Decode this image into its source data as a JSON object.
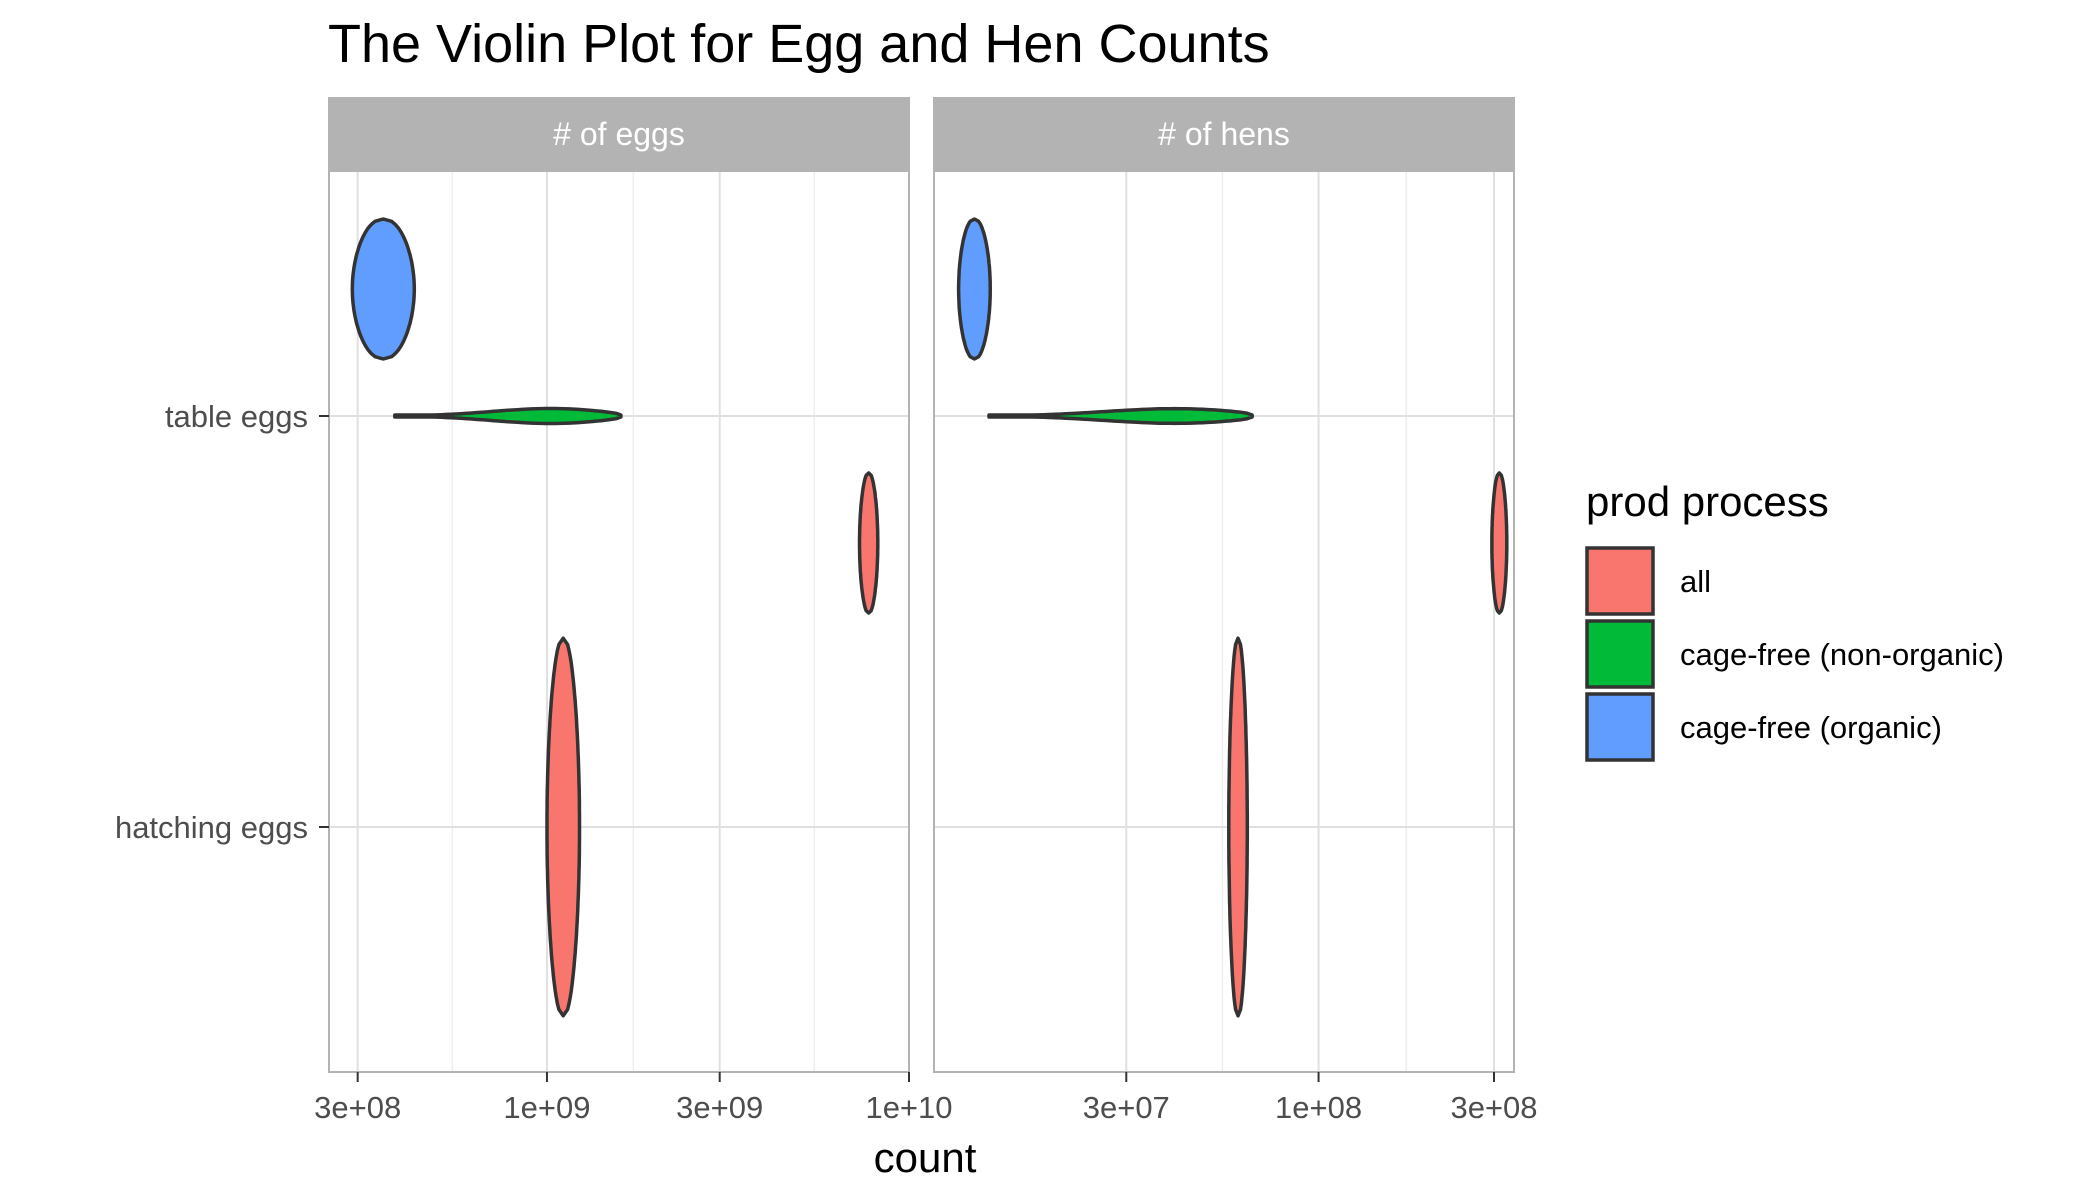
{
  "chart_data": {
    "type": "violin",
    "title": "The Violin Plot for Egg and Hen Counts",
    "xlabel": "count",
    "ylabel": "",
    "x_scale": "log10",
    "categories": [
      "table eggs",
      "hatching eggs"
    ],
    "facets": [
      {
        "label": "# of eggs",
        "xlim": [
          250000000,
          10000000000
        ],
        "x_ticks": [
          300000000,
          1000000000,
          3000000000,
          10000000000
        ],
        "x_tick_labels": [
          "3e+08",
          "1e+09",
          "3e+09",
          "1e+10"
        ],
        "violins": [
          {
            "category": "table eggs",
            "process": "cage-free (organic)",
            "min": 290000000,
            "max": 430000000,
            "mode": 340000000
          },
          {
            "category": "table eggs",
            "process": "cage-free (non-organic)",
            "min": 380000000,
            "max": 1600000000,
            "mode": 1100000000
          },
          {
            "category": "table eggs",
            "process": "all",
            "min": 7300000000,
            "max": 8200000000,
            "mode": 7800000000
          },
          {
            "category": "hatching eggs",
            "process": "all",
            "min": 1000000000,
            "max": 1230000000,
            "mode": 1140000000
          }
        ]
      },
      {
        "label": "# of hens",
        "xlim": [
          9000000,
          340000000
        ],
        "x_ticks": [
          30000000,
          100000000,
          300000000
        ],
        "x_tick_labels": [
          "3e+07",
          "1e+08",
          "3e+08"
        ],
        "violins": [
          {
            "category": "table eggs",
            "process": "cage-free (organic)",
            "min": 10500000,
            "max": 12800000,
            "mode": 11500000
          },
          {
            "category": "table eggs",
            "process": "cage-free (non-organic)",
            "min": 12700000,
            "max": 66000000,
            "mode": 45000000
          },
          {
            "category": "table eggs",
            "process": "all",
            "min": 296000000,
            "max": 325000000,
            "mode": 312000000
          },
          {
            "category": "hatching eggs",
            "process": "all",
            "min": 57000000,
            "max": 64000000,
            "mode": 61000000
          }
        ]
      }
    ],
    "legend": {
      "title": "prod process",
      "placement": "right",
      "entries": [
        {
          "label": "all",
          "color": "#F8766D"
        },
        {
          "label": "cage-free (non-organic)",
          "color": "#00BA38"
        },
        {
          "label": "cage-free (organic)",
          "color": "#619CFF"
        }
      ]
    },
    "grid": true
  },
  "colors": {
    "strip_background": "#b3b3b3",
    "panel_border": "#b3b3b3",
    "grid_major": "#e0e0e0",
    "grid_minor": "#eeeeee",
    "outline": "#333333"
  }
}
